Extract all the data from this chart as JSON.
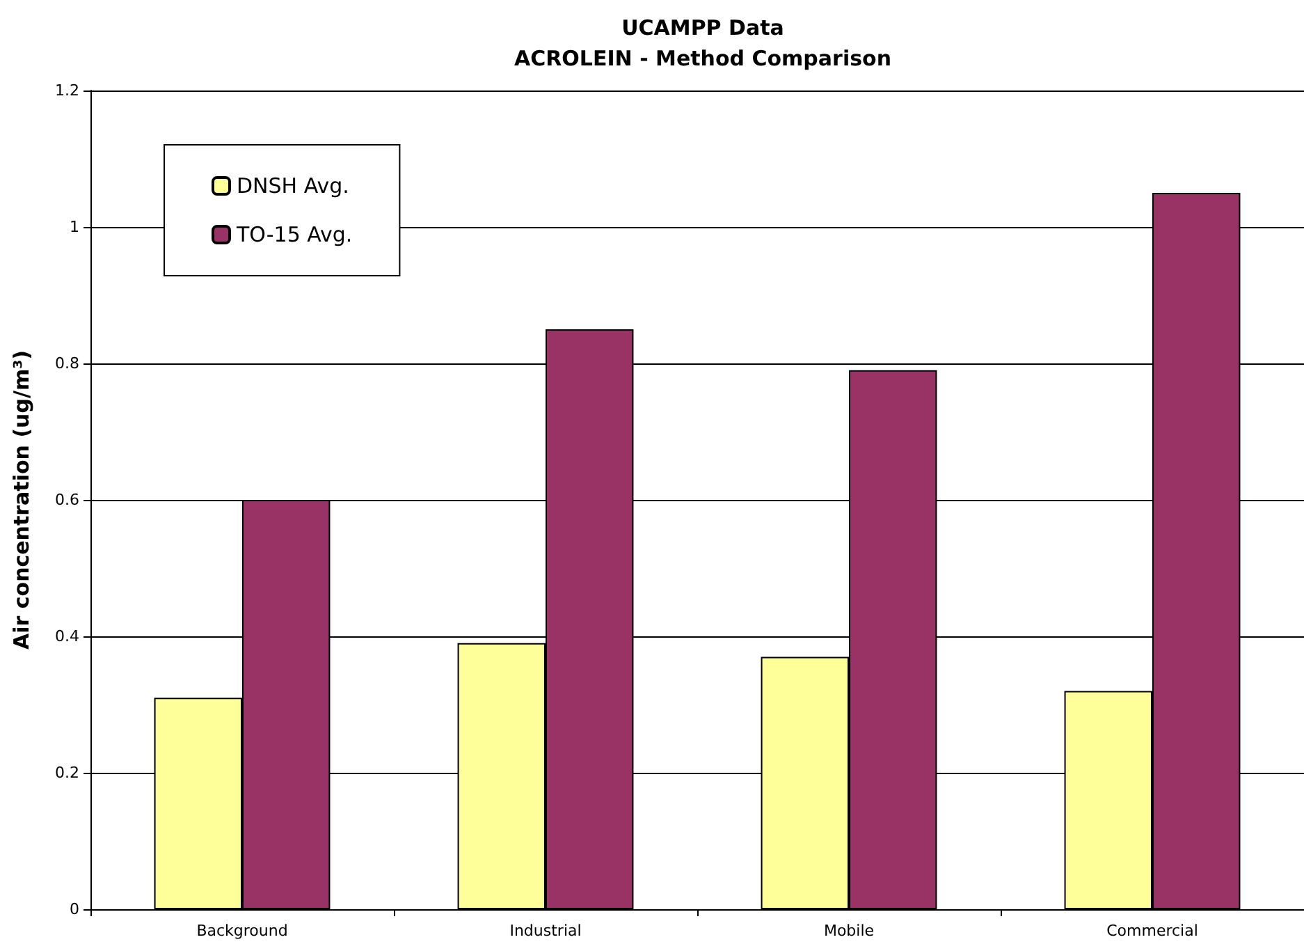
{
  "chart_data": {
    "type": "bar",
    "title": "UCAMPP Data\nACROLEIN - Method Comparison",
    "ylabel": "Air concentration (ug/m³)",
    "categories": [
      "Background",
      "Industrial",
      "Mobile",
      "Commercial"
    ],
    "series": [
      {
        "name": "DNSH Avg.",
        "color": "#ffff99",
        "values": [
          0.31,
          0.39,
          0.37,
          0.32
        ]
      },
      {
        "name": "TO-15 Avg.",
        "color": "#993366",
        "values": [
          0.6,
          0.85,
          0.79,
          1.05
        ]
      }
    ],
    "ylim": [
      0,
      1.2
    ],
    "yticks": [
      0,
      0.2,
      0.4,
      0.6,
      0.8,
      1,
      1.2
    ],
    "grid": "y",
    "legend": "top left"
  }
}
